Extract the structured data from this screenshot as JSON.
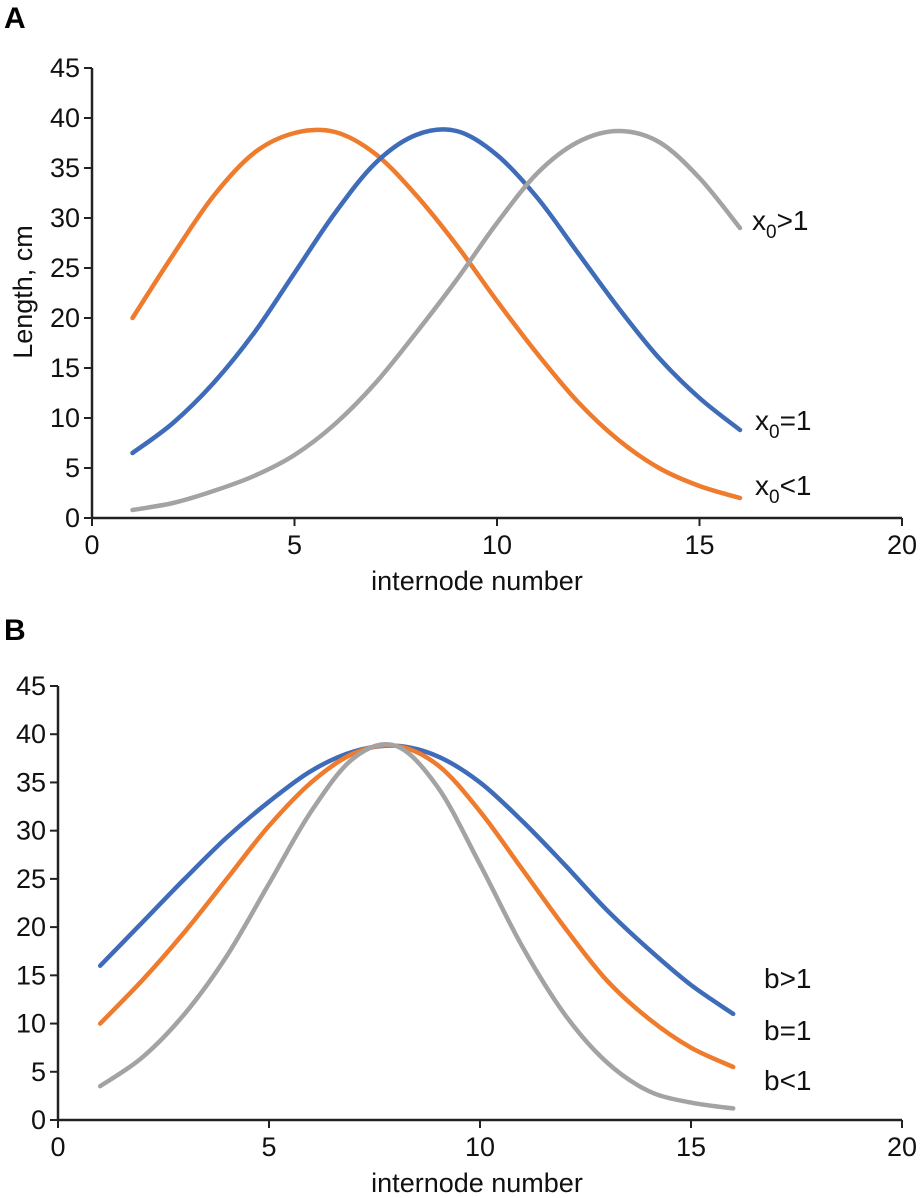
{
  "colors": {
    "orange": "#ef7b2d",
    "blue": "#3f6cb9",
    "gray": "#a3a3a3",
    "axis": "#222222"
  },
  "chart_data": [
    {
      "panel": "A",
      "type": "line",
      "xlabel": "internode number",
      "ylabel": "Length, cm",
      "xlim": [
        0,
        20
      ],
      "ylim": [
        0,
        45
      ],
      "xticks": [
        0,
        5,
        10,
        15,
        20
      ],
      "yticks": [
        0,
        5,
        10,
        15,
        20,
        25,
        30,
        35,
        40,
        45
      ],
      "series": [
        {
          "name": "x0<1",
          "label_main": "x",
          "label_sub": "0",
          "label_rest": "<1",
          "color": "#ef7b2d",
          "x": [
            1,
            2,
            3,
            4,
            5,
            6,
            7,
            8,
            9,
            10,
            11,
            12,
            13,
            14,
            15,
            16
          ],
          "y": [
            20,
            26.3,
            32.2,
            36.5,
            38.5,
            38.6,
            36.4,
            32.3,
            27.3,
            21.7,
            16.4,
            11.6,
            7.8,
            5.0,
            3.2,
            2.0
          ]
        },
        {
          "name": "x0=1",
          "label_main": "x",
          "label_sub": "0",
          "label_rest": "=1",
          "color": "#3f6cb9",
          "x": [
            1,
            2,
            3,
            4,
            5,
            6,
            7,
            8,
            9,
            10,
            11,
            12,
            13,
            14,
            15,
            16
          ],
          "y": [
            6.5,
            9.5,
            13.5,
            18.5,
            24.5,
            30.5,
            35.5,
            38.3,
            38.7,
            36.3,
            32,
            26.5,
            21,
            16,
            12,
            8.8
          ]
        },
        {
          "name": "x0>1",
          "label_main": "x",
          "label_sub": "0",
          "label_rest": ">1",
          "color": "#a3a3a3",
          "x": [
            1,
            2,
            3,
            4,
            5,
            6,
            7,
            8,
            9,
            10,
            11,
            12,
            13,
            14,
            15,
            16
          ],
          "y": [
            0.8,
            1.5,
            2.7,
            4.2,
            6.3,
            9.4,
            13.5,
            18.5,
            23.8,
            29.5,
            34.5,
            37.6,
            38.7,
            37.6,
            34,
            29
          ]
        }
      ]
    },
    {
      "panel": "B",
      "type": "line",
      "xlabel": "internode number",
      "ylabel": "",
      "xlim": [
        0,
        20
      ],
      "ylim": [
        0,
        45
      ],
      "xticks": [
        0,
        5,
        10,
        15,
        20
      ],
      "yticks": [
        0,
        5,
        10,
        15,
        20,
        25,
        30,
        35,
        40,
        45
      ],
      "series": [
        {
          "name": "b>1",
          "label_main": "b",
          "label_sub": "",
          "label_rest": ">1",
          "color": "#3f6cb9",
          "x": [
            1,
            2,
            3,
            4,
            5,
            6,
            7,
            8,
            9,
            10,
            11,
            12,
            13,
            14,
            15,
            16
          ],
          "y": [
            16,
            20.5,
            25,
            29.3,
            33,
            36.2,
            38.2,
            38.8,
            37.7,
            35,
            31,
            26.5,
            21.8,
            17.7,
            14,
            11
          ]
        },
        {
          "name": "b=1",
          "label_main": "b",
          "label_sub": "",
          "label_rest": "=1",
          "color": "#ef7b2d",
          "x": [
            1,
            2,
            3,
            4,
            5,
            6,
            7,
            8,
            9,
            10,
            11,
            12,
            13,
            14,
            15,
            16
          ],
          "y": [
            10,
            14.5,
            19.5,
            25,
            30.5,
            35,
            38,
            38.8,
            36.8,
            32,
            26,
            20,
            14.5,
            10.5,
            7.5,
            5.5
          ]
        },
        {
          "name": "b<1",
          "label_main": "b",
          "label_sub": "",
          "label_rest": "<1",
          "color": "#a3a3a3",
          "x": [
            1,
            2,
            3,
            4,
            5,
            6,
            7,
            8,
            9,
            10,
            11,
            12,
            13,
            14,
            15,
            16
          ],
          "y": [
            3.5,
            6.5,
            11,
            17,
            24.5,
            32,
            37.5,
            38.8,
            34.5,
            26.5,
            18,
            11,
            6,
            3,
            1.8,
            1.2
          ]
        }
      ]
    }
  ]
}
